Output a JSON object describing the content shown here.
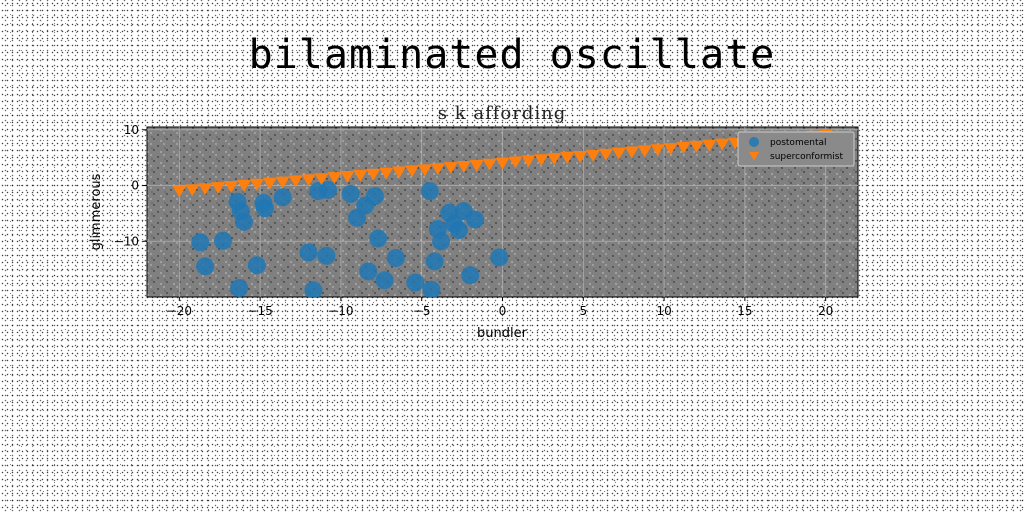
{
  "figure": {
    "suptitle": "bilaminated oscillate"
  },
  "chart_data": {
    "type": "scatter",
    "title": "s k affording",
    "xlabel": "bundler",
    "ylabel": "glimmerous",
    "xlim": [
      -22,
      22
    ],
    "ylim": [
      -20,
      10.5
    ],
    "xticks": [
      -20,
      -15,
      -10,
      -5,
      0,
      5,
      10,
      15,
      20
    ],
    "xtick_labels": [
      "−20",
      "−15",
      "−10",
      "−5",
      "0",
      "5",
      "10",
      "15",
      "20"
    ],
    "yticks": [
      10,
      0,
      -10
    ],
    "ytick_labels": [
      "10",
      "0",
      "−10"
    ],
    "grid": true,
    "legend_position": "top-right",
    "colors": {
      "plot_background": "#808080",
      "grid": "#b0b0b0"
    },
    "series": [
      {
        "name": "postomental",
        "marker": "circle",
        "color": "#1f77b4",
        "points": [
          [
            -18.7,
            -10.2
          ],
          [
            -18.4,
            -14.5
          ],
          [
            -17.3,
            -9.9
          ],
          [
            -16.4,
            -2.9
          ],
          [
            -16.2,
            -4.6
          ],
          [
            -16.0,
            -6.5
          ],
          [
            -16.3,
            -18.4
          ],
          [
            -15.2,
            -14.3
          ],
          [
            -14.7,
            -4.1
          ],
          [
            -14.8,
            -3.1
          ],
          [
            -13.6,
            -2.1
          ],
          [
            -12.0,
            -12.0
          ],
          [
            -11.7,
            -18.8
          ],
          [
            -11.4,
            -1.0
          ],
          [
            -10.9,
            -12.6
          ],
          [
            -10.8,
            -0.8
          ],
          [
            -9.4,
            -1.5
          ],
          [
            -9.0,
            -5.8
          ],
          [
            -8.5,
            -3.6
          ],
          [
            -8.3,
            -15.4
          ],
          [
            -7.9,
            -1.9
          ],
          [
            -7.7,
            -9.5
          ],
          [
            -7.3,
            -17.0
          ],
          [
            -6.6,
            -13.0
          ],
          [
            -5.4,
            -17.4
          ],
          [
            -4.5,
            -1.0
          ],
          [
            -4.4,
            -18.7
          ],
          [
            -4.2,
            -13.6
          ],
          [
            -4.0,
            -7.8
          ],
          [
            -3.8,
            -10.0
          ],
          [
            -3.3,
            -4.9
          ],
          [
            -3.0,
            -6.9
          ],
          [
            -2.7,
            -8.0
          ],
          [
            -2.4,
            -4.6
          ],
          [
            -2.0,
            -16.1
          ],
          [
            -1.7,
            -6.1
          ],
          [
            -0.2,
            -12.9
          ]
        ]
      },
      {
        "name": "superconformist",
        "marker": "triangle-down",
        "color": "#ff7f0e",
        "points": [
          [
            -20.0,
            -1.0
          ],
          [
            -19.2,
            -0.8
          ],
          [
            -18.4,
            -0.6
          ],
          [
            -17.6,
            -0.4
          ],
          [
            -16.8,
            -0.2
          ],
          [
            -16.0,
            0.0
          ],
          [
            -15.2,
            0.2
          ],
          [
            -14.4,
            0.4
          ],
          [
            -13.6,
            0.6
          ],
          [
            -12.8,
            0.8
          ],
          [
            -12.0,
            1.0
          ],
          [
            -11.2,
            1.2
          ],
          [
            -10.4,
            1.4
          ],
          [
            -9.6,
            1.6
          ],
          [
            -8.8,
            1.8
          ],
          [
            -8.0,
            2.0
          ],
          [
            -7.2,
            2.2
          ],
          [
            -6.4,
            2.4
          ],
          [
            -5.6,
            2.6
          ],
          [
            -4.8,
            2.8
          ],
          [
            -4.0,
            3.0
          ],
          [
            -3.2,
            3.2
          ],
          [
            -2.4,
            3.4
          ],
          [
            -1.6,
            3.6
          ],
          [
            -0.8,
            3.8
          ],
          [
            0.0,
            4.0
          ],
          [
            0.8,
            4.2
          ],
          [
            1.6,
            4.4
          ],
          [
            2.4,
            4.6
          ],
          [
            3.2,
            4.8
          ],
          [
            4.0,
            5.0
          ],
          [
            4.8,
            5.2
          ],
          [
            5.6,
            5.4
          ],
          [
            6.4,
            5.6
          ],
          [
            7.2,
            5.8
          ],
          [
            8.0,
            6.0
          ],
          [
            8.8,
            6.2
          ],
          [
            9.6,
            6.4
          ],
          [
            10.4,
            6.6
          ],
          [
            11.2,
            6.8
          ],
          [
            12.0,
            7.0
          ],
          [
            12.8,
            7.2
          ],
          [
            13.6,
            7.4
          ],
          [
            14.4,
            7.6
          ],
          [
            15.2,
            7.8
          ],
          [
            16.0,
            8.0
          ],
          [
            16.8,
            8.2
          ],
          [
            17.6,
            8.4
          ],
          [
            18.4,
            8.6
          ],
          [
            19.2,
            8.8
          ],
          [
            20.0,
            9.0
          ]
        ]
      }
    ]
  }
}
